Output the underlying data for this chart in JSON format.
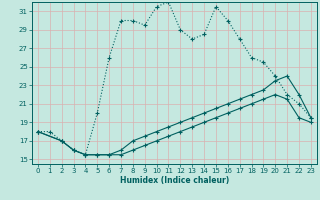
{
  "title": "",
  "xlabel": "Humidex (Indice chaleur)",
  "xlim": [
    -0.5,
    23.5
  ],
  "ylim": [
    14.5,
    32
  ],
  "yticks": [
    15,
    17,
    19,
    21,
    23,
    25,
    27,
    29,
    31
  ],
  "xticks": [
    0,
    1,
    2,
    3,
    4,
    5,
    6,
    7,
    8,
    9,
    10,
    11,
    12,
    13,
    14,
    15,
    16,
    17,
    18,
    19,
    20,
    21,
    22,
    23
  ],
  "background_color": "#c5e8e0",
  "grid_color": "#dab0b0",
  "line_color": "#006060",
  "curve1_x": [
    0,
    1,
    2,
    3,
    4,
    5,
    6,
    7,
    8,
    9,
    10,
    11,
    12,
    13,
    14,
    15,
    16,
    17,
    18,
    19,
    20,
    21,
    22,
    23
  ],
  "curve1_y": [
    18,
    18,
    17,
    16,
    15.5,
    20,
    26,
    30,
    30,
    29.5,
    31.5,
    32,
    29,
    28,
    28.5,
    31.5,
    30,
    28,
    26,
    25.5,
    24,
    22,
    21,
    19.5
  ],
  "curve2_x": [
    0,
    2,
    3,
    4,
    5,
    6,
    7,
    8,
    9,
    10,
    11,
    12,
    13,
    14,
    15,
    16,
    17,
    18,
    19,
    20,
    21,
    22,
    23
  ],
  "curve2_y": [
    18,
    17,
    16,
    15.5,
    15.5,
    15.5,
    16,
    17,
    17.5,
    18,
    18.5,
    19,
    19.5,
    20,
    20.5,
    21,
    21.5,
    22,
    22.5,
    23.5,
    24,
    22,
    19.5
  ],
  "curve3_x": [
    0,
    2,
    3,
    4,
    5,
    6,
    7,
    8,
    9,
    10,
    11,
    12,
    13,
    14,
    15,
    16,
    17,
    18,
    19,
    20,
    21,
    22,
    23
  ],
  "curve3_y": [
    18,
    17,
    16,
    15.5,
    15.5,
    15.5,
    15.5,
    16,
    16.5,
    17,
    17.5,
    18,
    18.5,
    19,
    19.5,
    20,
    20.5,
    21,
    21.5,
    22,
    21.5,
    19.5,
    19
  ]
}
